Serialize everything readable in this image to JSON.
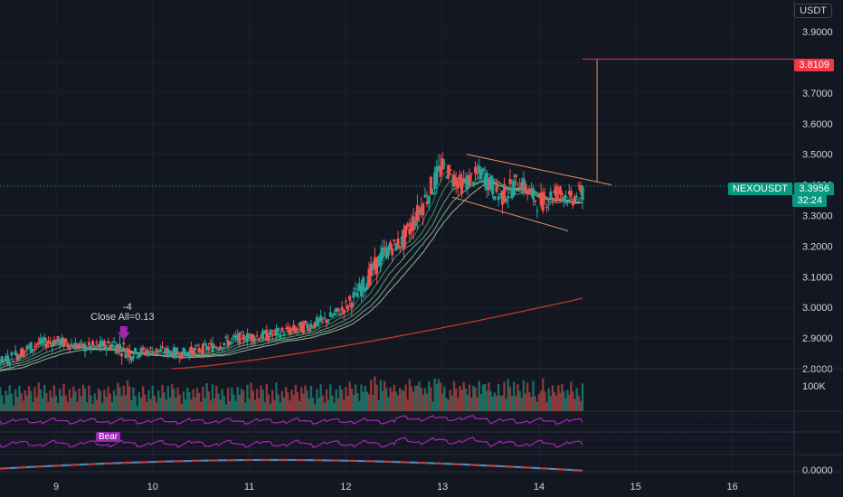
{
  "header": {
    "currency_label": "USDT"
  },
  "chart_data": {
    "type": "candlestick",
    "symbol": "NEXOUSDT",
    "last_price": "3.3956",
    "countdown": "32:24",
    "target_price": "3.8109",
    "y_ticks": [
      "3.9000",
      "3.8000",
      "3.7000",
      "3.6000",
      "3.5000",
      "3.4000",
      "3.3000",
      "3.2000",
      "3.1000",
      "3.0000",
      "2.9000",
      "2.8000"
    ],
    "y_tick_values": [
      3.9,
      3.8,
      3.7,
      3.6,
      3.5,
      3.4,
      3.3,
      3.2,
      3.1,
      3.0,
      2.9,
      2.8
    ],
    "x_ticks": [
      "9",
      "10",
      "11",
      "12",
      "13",
      "14",
      "15",
      "16"
    ],
    "x_tick_day": [
      9,
      10,
      11,
      12,
      13,
      14,
      15,
      16
    ],
    "ylim": [
      2.8,
      3.98
    ],
    "annotation": {
      "lines": [
        "-4",
        "Close All=0.13"
      ],
      "day": 9.7
    },
    "volume_label": "100K",
    "bear_label": "Bear",
    "osc_label": "0.0000",
    "ma_200_start": 2.8,
    "ma_200_end": 3.03,
    "colors": {
      "up": "#26a69a",
      "down": "#ef5350",
      "background": "#131722",
      "grid": "#1e222d",
      "ma": "#c0392b",
      "osc": "#9c27b0",
      "target_line": "#f23645"
    },
    "candles_ohlc": [
      [
        8.0,
        2.8,
        2.82,
        2.79,
        2.8
      ],
      [
        8.5,
        2.81,
        2.84,
        2.8,
        2.83
      ],
      [
        8.8,
        2.83,
        2.9,
        2.82,
        2.88
      ],
      [
        9.0,
        2.87,
        2.91,
        2.85,
        2.89
      ],
      [
        9.3,
        2.89,
        2.92,
        2.86,
        2.87
      ],
      [
        9.6,
        2.87,
        2.9,
        2.84,
        2.88
      ],
      [
        9.8,
        2.88,
        2.95,
        2.83,
        2.85
      ],
      [
        10.0,
        2.85,
        2.88,
        2.82,
        2.86
      ],
      [
        10.3,
        2.86,
        2.88,
        2.83,
        2.85
      ],
      [
        10.6,
        2.85,
        2.89,
        2.84,
        2.87
      ],
      [
        10.9,
        2.87,
        2.93,
        2.86,
        2.9
      ],
      [
        11.2,
        2.9,
        2.94,
        2.88,
        2.91
      ],
      [
        11.5,
        2.91,
        2.95,
        2.89,
        2.93
      ],
      [
        11.8,
        2.93,
        2.98,
        2.91,
        2.96
      ],
      [
        12.0,
        2.96,
        3.01,
        2.94,
        3.0
      ],
      [
        12.2,
        3.0,
        3.1,
        2.98,
        3.08
      ],
      [
        12.4,
        3.08,
        3.22,
        3.06,
        3.18
      ],
      [
        12.6,
        3.18,
        3.26,
        3.15,
        3.22
      ],
      [
        12.8,
        3.22,
        3.38,
        3.2,
        3.34
      ],
      [
        13.0,
        3.34,
        3.5,
        3.3,
        3.46
      ],
      [
        13.2,
        3.46,
        3.49,
        3.36,
        3.4
      ],
      [
        13.4,
        3.4,
        3.46,
        3.32,
        3.44
      ],
      [
        13.6,
        3.44,
        3.47,
        3.31,
        3.36
      ],
      [
        13.8,
        3.36,
        3.45,
        3.28,
        3.41
      ],
      [
        14.0,
        3.41,
        3.44,
        3.3,
        3.34
      ],
      [
        14.2,
        3.34,
        3.42,
        3.27,
        3.38
      ],
      [
        14.35,
        3.38,
        3.42,
        3.3,
        3.35
      ],
      [
        14.45,
        3.35,
        3.4,
        3.32,
        3.3956
      ]
    ]
  }
}
